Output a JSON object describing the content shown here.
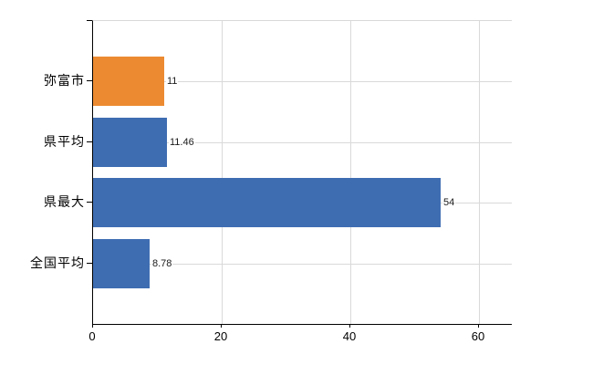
{
  "chart_data": {
    "type": "bar",
    "orientation": "horizontal",
    "title": "",
    "xlabel": "",
    "ylabel": "",
    "categories": [
      "弥富市",
      "県平均",
      "県最大",
      "全国平均"
    ],
    "values": [
      11,
      11.46,
      54,
      8.78
    ],
    "value_labels": [
      "11",
      "11.46",
      "54",
      "8.78"
    ],
    "bar_colors": [
      "#ec8a31",
      "#3e6db2",
      "#3e6db2",
      "#3e6db2"
    ],
    "x_ticks": [
      0,
      20,
      40,
      60
    ],
    "x_tick_labels": [
      "0",
      "20",
      "40",
      "60"
    ],
    "xlim": [
      0,
      65
    ],
    "grid": true,
    "legend": false
  },
  "colors": {
    "highlight_bar": "#ec8a31",
    "default_bar": "#3e6db2",
    "gridline": "#d9d9d9",
    "axis": "#000000",
    "label_text": "#000000",
    "value_text": "#1a1a1a",
    "background": "#ffffff"
  }
}
